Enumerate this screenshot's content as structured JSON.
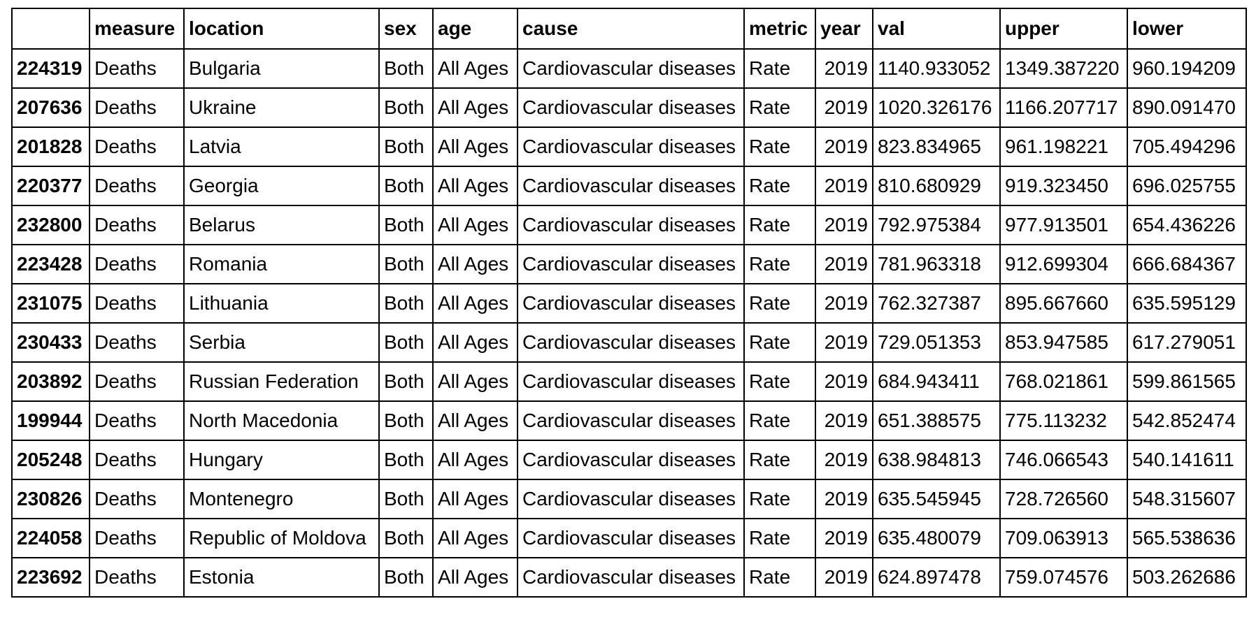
{
  "table": {
    "columns": [
      "",
      "measure",
      "location",
      "sex",
      "age",
      "cause",
      "metric",
      "year",
      "val",
      "upper",
      "lower"
    ],
    "rows": [
      [
        "224319",
        "Deaths",
        "Bulgaria",
        "Both",
        "All Ages",
        "Cardiovascular diseases",
        "Rate",
        "2019",
        "1140.933052",
        "1349.387220",
        "960.194209"
      ],
      [
        "207636",
        "Deaths",
        "Ukraine",
        "Both",
        "All Ages",
        "Cardiovascular diseases",
        "Rate",
        "2019",
        "1020.326176",
        "1166.207717",
        "890.091470"
      ],
      [
        "201828",
        "Deaths",
        "Latvia",
        "Both",
        "All Ages",
        "Cardiovascular diseases",
        "Rate",
        "2019",
        "823.834965",
        "961.198221",
        "705.494296"
      ],
      [
        "220377",
        "Deaths",
        "Georgia",
        "Both",
        "All Ages",
        "Cardiovascular diseases",
        "Rate",
        "2019",
        "810.680929",
        "919.323450",
        "696.025755"
      ],
      [
        "232800",
        "Deaths",
        "Belarus",
        "Both",
        "All Ages",
        "Cardiovascular diseases",
        "Rate",
        "2019",
        "792.975384",
        "977.913501",
        "654.436226"
      ],
      [
        "223428",
        "Deaths",
        "Romania",
        "Both",
        "All Ages",
        "Cardiovascular diseases",
        "Rate",
        "2019",
        "781.963318",
        "912.699304",
        "666.684367"
      ],
      [
        "231075",
        "Deaths",
        "Lithuania",
        "Both",
        "All Ages",
        "Cardiovascular diseases",
        "Rate",
        "2019",
        "762.327387",
        "895.667660",
        "635.595129"
      ],
      [
        "230433",
        "Deaths",
        "Serbia",
        "Both",
        "All Ages",
        "Cardiovascular diseases",
        "Rate",
        "2019",
        "729.051353",
        "853.947585",
        "617.279051"
      ],
      [
        "203892",
        "Deaths",
        "Russian Federation",
        "Both",
        "All Ages",
        "Cardiovascular diseases",
        "Rate",
        "2019",
        "684.943411",
        "768.021861",
        "599.861565"
      ],
      [
        "199944",
        "Deaths",
        "North Macedonia",
        "Both",
        "All Ages",
        "Cardiovascular diseases",
        "Rate",
        "2019",
        "651.388575",
        "775.113232",
        "542.852474"
      ],
      [
        "205248",
        "Deaths",
        "Hungary",
        "Both",
        "All Ages",
        "Cardiovascular diseases",
        "Rate",
        "2019",
        "638.984813",
        "746.066543",
        "540.141611"
      ],
      [
        "230826",
        "Deaths",
        "Montenegro",
        "Both",
        "All Ages",
        "Cardiovascular diseases",
        "Rate",
        "2019",
        "635.545945",
        "728.726560",
        "548.315607"
      ],
      [
        "224058",
        "Deaths",
        "Republic of Moldova",
        "Both",
        "All Ages",
        "Cardiovascular diseases",
        "Rate",
        "2019",
        "635.480079",
        "709.063913",
        "565.538636"
      ],
      [
        "223692",
        "Deaths",
        "Estonia",
        "Both",
        "All Ages",
        "Cardiovascular diseases",
        "Rate",
        "2019",
        "624.897478",
        "759.074576",
        "503.262686"
      ]
    ]
  }
}
